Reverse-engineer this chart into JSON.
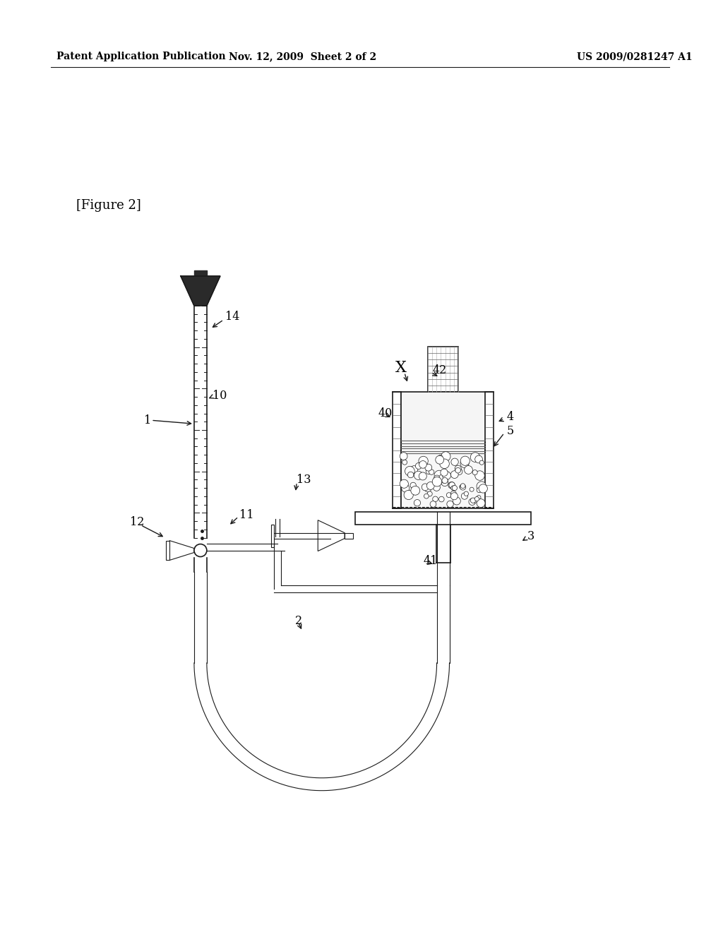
{
  "bg_color": "#ffffff",
  "header_left": "Patent Application Publication",
  "header_mid": "Nov. 12, 2009  Sheet 2 of 2",
  "header_right": "US 2009/0281247 A1",
  "figure_label": "[Figure 2]"
}
